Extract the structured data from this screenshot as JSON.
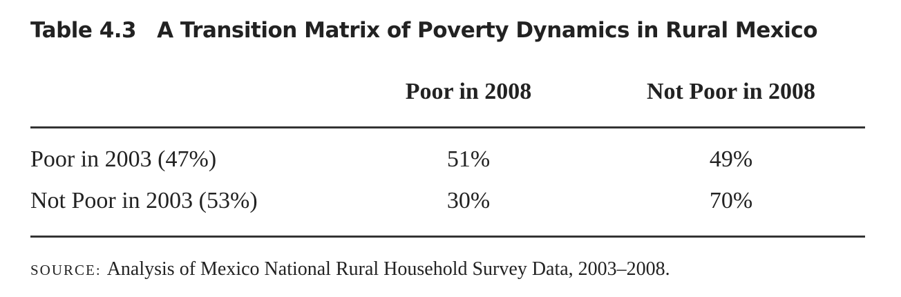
{
  "header": {
    "label": "Table 4.3",
    "title": "A Transition Matrix of Poverty Dynamics in Rural Mexico"
  },
  "table": {
    "columns": [
      "Poor in 2008",
      "Not Poor in 2008"
    ],
    "rows": [
      [
        "Poor in 2003 (47%)",
        "51%",
        "49%"
      ],
      [
        "Not Poor in 2003 (53%)",
        "30%",
        "70%"
      ]
    ]
  },
  "source": {
    "label": "SOURCE:",
    "text": "Analysis of Mexico National Rural Household Survey Data, 2003–2008."
  }
}
